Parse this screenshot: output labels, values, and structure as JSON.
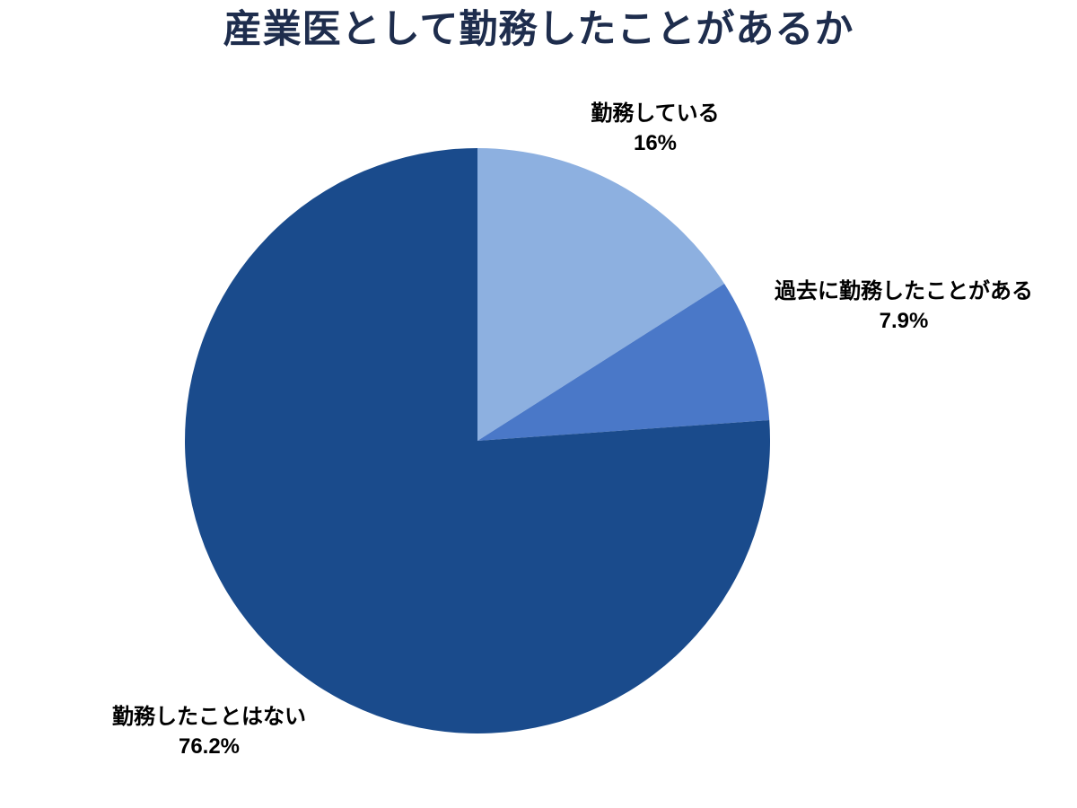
{
  "chart_data": {
    "type": "pie",
    "title": "産業医として勤務したことがあるか",
    "title_color": "#1e2d4d",
    "label_color": "#000000",
    "background_color": "#ffffff",
    "start_angle_deg": 0,
    "direction": "clockwise",
    "legend": "none",
    "labels_position": "outside",
    "slices": [
      {
        "label": "勤務している",
        "value": 16,
        "value_text": "16%",
        "color": "#8db0e0"
      },
      {
        "label": "過去に勤務したことがある",
        "value": 7.9,
        "value_text": "7.9%",
        "color": "#4a78c8"
      },
      {
        "label": "勤務したことはない",
        "value": 76.2,
        "value_text": "76.2%",
        "color": "#1a4b8c"
      }
    ]
  }
}
